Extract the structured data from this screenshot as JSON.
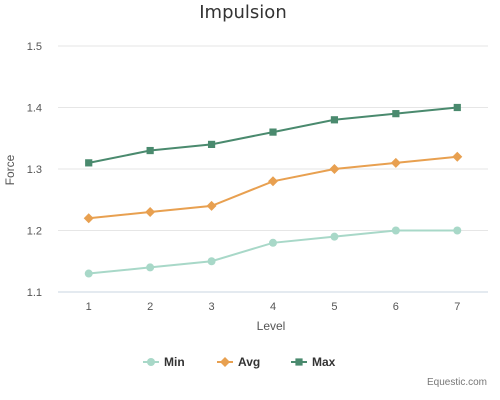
{
  "chart_data": {
    "type": "line",
    "title": "Impulsion",
    "xlabel": "Level",
    "ylabel": "Force",
    "x": [
      1,
      2,
      3,
      4,
      5,
      6,
      7
    ],
    "ylim": [
      1.1,
      1.5
    ],
    "yticks": [
      1.1,
      1.2,
      1.3,
      1.4,
      1.5
    ],
    "grid": true,
    "legend_position": "bottom",
    "series": [
      {
        "name": "Min",
        "color": "#a8d8c8",
        "marker": "circle",
        "values": [
          1.13,
          1.14,
          1.15,
          1.18,
          1.19,
          1.2,
          1.2
        ]
      },
      {
        "name": "Avg",
        "color": "#e8a050",
        "marker": "diamond",
        "values": [
          1.22,
          1.23,
          1.24,
          1.28,
          1.3,
          1.31,
          1.32
        ]
      },
      {
        "name": "Max",
        "color": "#4a8a6e",
        "marker": "square",
        "values": [
          1.31,
          1.33,
          1.34,
          1.36,
          1.38,
          1.39,
          1.4
        ]
      }
    ]
  },
  "credit": "Equestic.com"
}
